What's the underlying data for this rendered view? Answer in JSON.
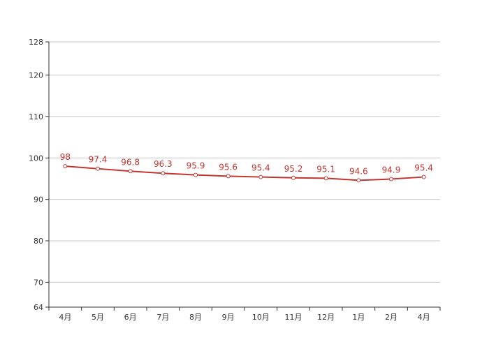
{
  "chart_data": {
    "type": "line",
    "categories": [
      "4月",
      "5月",
      "6月",
      "7月",
      "8月",
      "9月",
      "10月",
      "11月",
      "12月",
      "1月",
      "2月",
      "4月"
    ],
    "series": [
      {
        "values": [
          98,
          97.4,
          96.8,
          96.3,
          95.9,
          95.6,
          95.4,
          95.2,
          95.1,
          94.6,
          94.9,
          95.4
        ],
        "color": "#c23531"
      }
    ],
    "ylim": [
      64,
      128
    ],
    "yticks": [
      64,
      70,
      80,
      90,
      100,
      110,
      120,
      128
    ],
    "grid": true,
    "legend": "none",
    "title": "",
    "xlabel": "",
    "ylabel": ""
  }
}
